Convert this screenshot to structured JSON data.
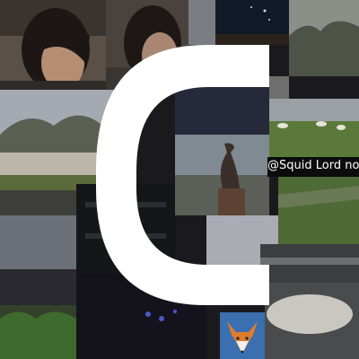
{
  "collage": {
    "handle_caption": "@Squid Lord no",
    "logo_letter": "C",
    "logo_icon": "c-letter-logo-icon",
    "logo_color": "#ffffff",
    "tiles": [
      {
        "name": "tile-portrait-1",
        "subject": "person-with-dark-hair"
      },
      {
        "name": "tile-portrait-2",
        "subject": "person-with-dark-hair"
      },
      {
        "name": "tile-night-sky",
        "subject": "night-sky-with-stars"
      },
      {
        "name": "tile-misty-trees",
        "subject": "misty-trees"
      },
      {
        "name": "tile-fence-trees",
        "subject": "fence-and-trees"
      },
      {
        "name": "tile-sheep-field",
        "subject": "sheep-in-field"
      },
      {
        "name": "tile-heron-statue",
        "subject": "wooden-heron-statue"
      },
      {
        "name": "tile-caption",
        "subject": "username-caption"
      },
      {
        "name": "tile-fox-avatar",
        "subject": "fox-face-icon"
      }
    ]
  }
}
